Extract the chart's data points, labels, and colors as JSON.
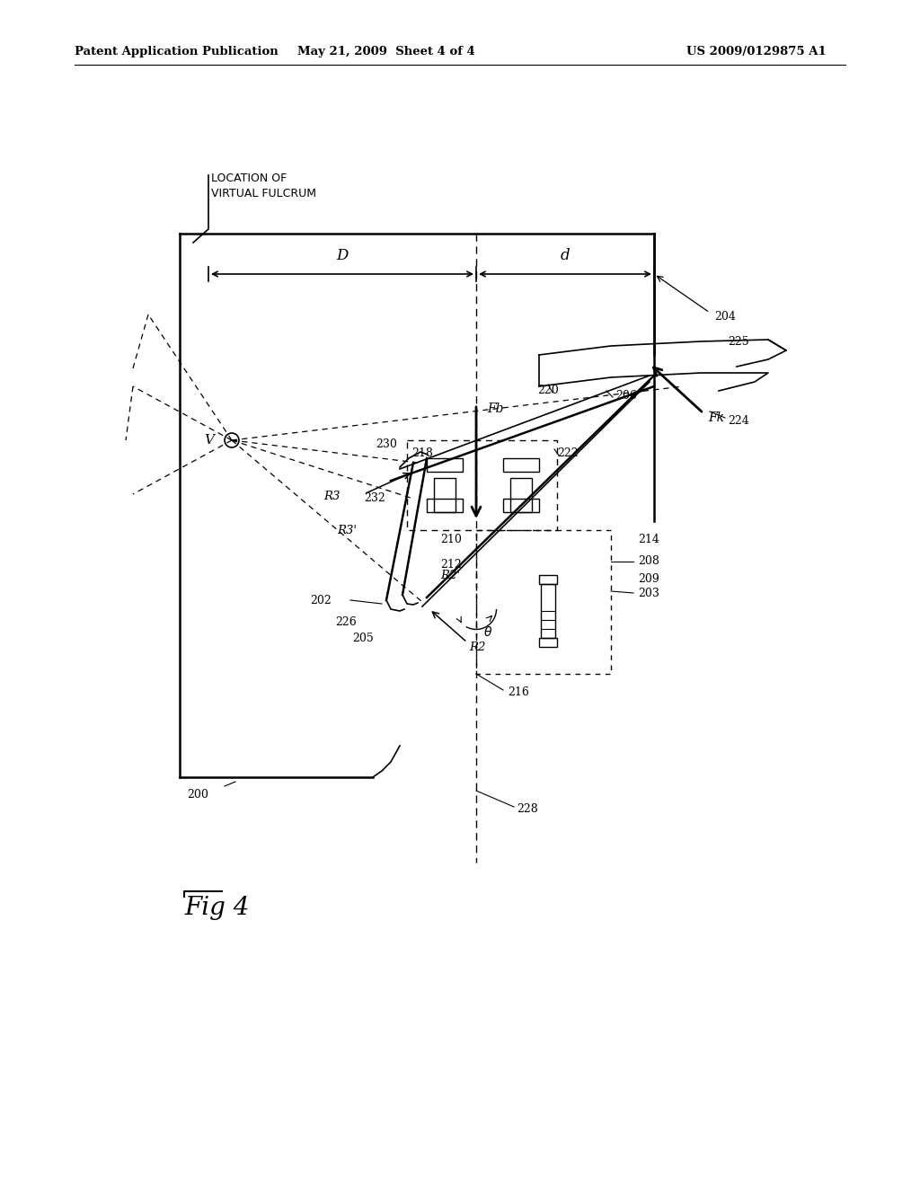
{
  "bg_color": "#ffffff",
  "header_text": "Patent Application Publication",
  "header_date": "May 21, 2009  Sheet 4 of 4",
  "header_patent": "US 2009/0129875 A1",
  "fig_label": "Fig 4",
  "title_note": "LOCATION OF\nVIRTUAL FULCRUM",
  "figsize": [
    10.24,
    13.2
  ],
  "dpi": 100
}
